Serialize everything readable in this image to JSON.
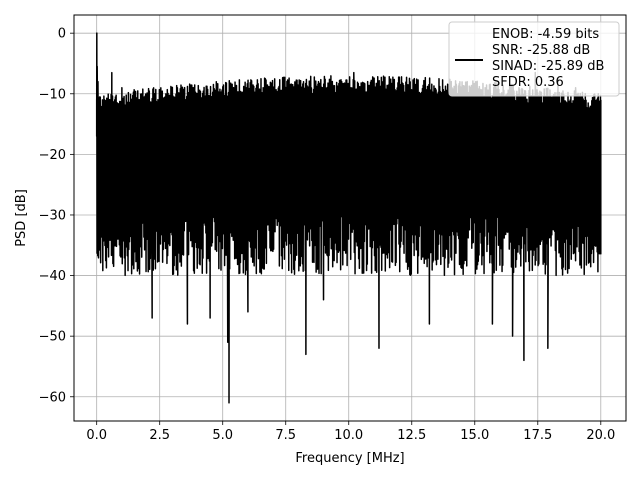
{
  "chart_data": {
    "type": "line",
    "xlabel": "Frequency [MHz]",
    "ylabel": "PSD [dB]",
    "xlim": [
      -0.9,
      21.0
    ],
    "ylim": [
      -64.0,
      3.0
    ],
    "xticks": [
      0.0,
      2.5,
      5.0,
      7.5,
      10.0,
      12.5,
      15.0,
      17.5,
      20.0
    ],
    "xtick_labels": [
      "0.0",
      "2.5",
      "5.0",
      "7.5",
      "10.0",
      "12.5",
      "15.0",
      "17.5",
      "20.0"
    ],
    "yticks": [
      0,
      -10,
      -20,
      -30,
      -40,
      -50,
      -60
    ],
    "ytick_labels": [
      "0",
      "−10",
      "−20",
      "−30",
      "−40",
      "−50",
      "−60"
    ],
    "grid": true,
    "legend_position": "top-right",
    "legend_lines": [
      "ENOB: -4.59 bits",
      "SNR: -25.88 dB",
      "SINAD: -25.89 dB",
      "SFDR: 0.36"
    ],
    "line_color": "#000000",
    "series": [
      {
        "x": [
          0,
          0.005,
          0.02,
          0.05,
          0.6,
          1.0,
          2.2,
          2.3,
          3.6,
          4.5,
          5.2,
          5.25,
          6.0,
          7.6,
          8.3,
          8.8,
          9.0,
          10.2,
          11.2,
          12.6,
          13.2,
          14.7,
          15.7,
          16.0,
          16.5,
          16.95,
          17.4,
          17.9,
          18.3,
          18.6,
          19.0,
          19.9,
          20.0
        ],
        "y": [
          -17,
          0,
          -5.5,
          -8,
          -6.5,
          -9,
          -47,
          -10,
          -48,
          -47,
          -51,
          -61,
          -46,
          -9.5,
          -53,
          -8,
          -44,
          -6.5,
          -52,
          -7.5,
          -48,
          -8,
          -48,
          -10,
          -50,
          -54,
          -6.5,
          -52,
          -7.5,
          -39,
          -9,
          -10,
          -11
        ]
      }
    ],
    "noise_band": {
      "upper_min": -12,
      "upper_max": -7,
      "lower_min": -40,
      "lower_max": -30,
      "points": 1400
    }
  }
}
